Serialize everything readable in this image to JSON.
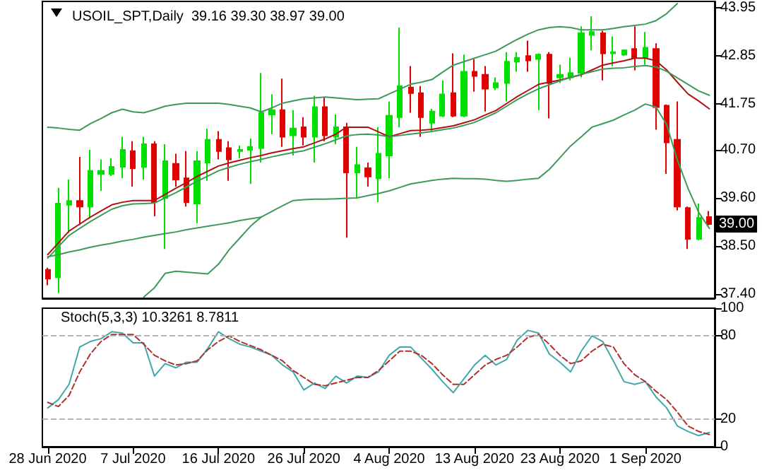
{
  "chart_data": [
    {
      "type": "candlestick",
      "title": "USOIL_SPT,Daily  39.16 39.30 38.97 39.00",
      "categories": [
        null,
        null,
        null,
        null,
        null,
        null,
        null,
        null,
        null,
        null,
        null,
        null,
        null,
        null,
        null,
        null,
        null,
        null,
        null,
        null,
        null,
        null,
        null,
        null,
        null,
        null,
        null,
        null,
        null,
        null,
        null,
        null,
        null,
        null,
        null,
        null,
        null,
        null,
        null,
        null,
        null,
        null,
        null,
        null,
        null,
        null,
        null,
        null,
        null,
        null,
        null,
        null,
        null,
        null,
        null,
        null,
        null,
        null,
        null,
        null,
        null,
        null,
        null
      ],
      "ohlc": [
        [
          37.95,
          38.0,
          37.6,
          37.75
        ],
        [
          37.78,
          39.83,
          37.42,
          39.47
        ],
        [
          39.44,
          40.02,
          38.79,
          39.53
        ],
        [
          39.53,
          40.54,
          38.98,
          39.4
        ],
        [
          39.4,
          40.7,
          39.14,
          40.22
        ],
        [
          40.15,
          40.48,
          39.76,
          40.22
        ],
        [
          40.15,
          40.51,
          40.1,
          40.31
        ],
        [
          40.31,
          41.0,
          40.05,
          40.7
        ],
        [
          40.67,
          40.9,
          39.86,
          40.28
        ],
        [
          40.31,
          41.0,
          40.02,
          40.83
        ],
        [
          40.83,
          40.9,
          39.18,
          39.5
        ],
        [
          39.6,
          40.83,
          38.43,
          40.44
        ],
        [
          40.38,
          40.61,
          39.86,
          40.02
        ],
        [
          40.05,
          40.67,
          39.4,
          39.5
        ],
        [
          39.47,
          40.67,
          39.02,
          40.44
        ],
        [
          40.41,
          41.19,
          39.99,
          40.93
        ],
        [
          40.93,
          41.13,
          40.48,
          40.67
        ],
        [
          40.74,
          40.9,
          39.99,
          40.48
        ],
        [
          40.67,
          40.8,
          40.51,
          40.7
        ],
        [
          40.7,
          40.96,
          39.92,
          40.77
        ],
        [
          40.74,
          42.46,
          40.41,
          41.55
        ],
        [
          41.51,
          41.97,
          41.06,
          41.61
        ],
        [
          41.61,
          42.33,
          40.77,
          41.0
        ],
        [
          41.03,
          41.61,
          40.57,
          41.19
        ],
        [
          41.22,
          41.45,
          40.8,
          41.0
        ],
        [
          41.0,
          41.94,
          40.41,
          41.68
        ],
        [
          41.68,
          41.9,
          40.9,
          41.03
        ],
        [
          41.0,
          41.51,
          40.83,
          41.22
        ],
        [
          41.22,
          41.32,
          38.69,
          40.18
        ],
        [
          40.18,
          40.77,
          39.6,
          40.35
        ],
        [
          40.28,
          40.41,
          39.86,
          40.09
        ],
        [
          40.05,
          41.22,
          39.5,
          40.61
        ],
        [
          40.57,
          41.81,
          40.05,
          41.48
        ],
        [
          41.45,
          43.5,
          41.22,
          42.16
        ],
        [
          42.13,
          42.62,
          41.55,
          42.0
        ],
        [
          42.0,
          42.16,
          41.0,
          41.45
        ],
        [
          41.32,
          41.64,
          41.13,
          41.58
        ],
        [
          41.48,
          42.29,
          41.45,
          41.97
        ],
        [
          42.0,
          42.91,
          41.45,
          41.48
        ],
        [
          41.48,
          42.88,
          41.45,
          42.49
        ],
        [
          42.49,
          42.78,
          42.03,
          42.39
        ],
        [
          42.42,
          42.62,
          41.58,
          42.1
        ],
        [
          42.13,
          42.36,
          42.07,
          42.23
        ],
        [
          42.23,
          42.94,
          41.81,
          42.72
        ],
        [
          42.72,
          42.94,
          42.49,
          42.81
        ],
        [
          42.85,
          43.2,
          42.49,
          42.75
        ],
        [
          42.78,
          42.91,
          41.61,
          42.88
        ],
        [
          42.88,
          42.94,
          41.42,
          42.23
        ],
        [
          42.36,
          42.65,
          42.23,
          42.42
        ],
        [
          42.36,
          42.81,
          42.29,
          42.46
        ],
        [
          42.46,
          43.53,
          42.36,
          43.37
        ],
        [
          43.33,
          43.76,
          42.98,
          43.4
        ],
        [
          43.37,
          43.43,
          42.29,
          42.91
        ],
        [
          42.91,
          43.3,
          42.62,
          42.94
        ],
        [
          42.88,
          43.0,
          42.85,
          42.98
        ],
        [
          43.01,
          43.53,
          42.52,
          42.81
        ],
        [
          42.81,
          43.4,
          42.65,
          43.04
        ],
        [
          43.01,
          43.14,
          41.16,
          41.68
        ],
        [
          41.71,
          41.74,
          40.15,
          40.87
        ],
        [
          40.93,
          41.81,
          39.31,
          39.4
        ],
        [
          39.37,
          39.4,
          38.43,
          38.66
        ],
        [
          38.66,
          39.47,
          38.63,
          39.14
        ],
        [
          39.16,
          39.3,
          38.97,
          39.0
        ]
      ],
      "colors": [
        "#e00000",
        "#00e000",
        "#00e000",
        "#e00000",
        "#00e000",
        "#00e000",
        "#00e000",
        "#00e000",
        "#e00000",
        "#00e000",
        "#e00000",
        "#00e000",
        "#e00000",
        "#e00000",
        "#00e000",
        "#00e000",
        "#e00000",
        "#e00000",
        "#00e000",
        "#00e000",
        "#00e000",
        "#00e000",
        "#e00000",
        "#00e000",
        "#e00000",
        "#00e000",
        "#e00000",
        "#00e000",
        "#e00000",
        "#00e000",
        "#e00000",
        "#00e000",
        "#00e000",
        "#00e000",
        "#e00000",
        "#e00000",
        "#00e000",
        "#00e000",
        "#e00000",
        "#00e000",
        "#e00000",
        "#e00000",
        "#00e000",
        "#00e000",
        "#00e000",
        "#e00000",
        "#00e000",
        "#e00000",
        "#00e000",
        "#00e000",
        "#00e000",
        "#00e000",
        "#e00000",
        "#00e000",
        "#00e000",
        "#e00000",
        "#00e000",
        "#e00000",
        "#e00000",
        "#e00000",
        "#e00000",
        "#00e000",
        "#e00000"
      ],
      "series": [
        {
          "type": "line",
          "color": "#3c9a5a",
          "values": [
            41.22,
            41.2,
            41.17,
            41.15,
            41.3,
            41.42,
            41.55,
            41.63,
            41.57,
            41.55,
            41.62,
            41.7,
            41.74,
            41.77,
            41.77,
            41.77,
            41.77,
            41.74,
            41.7,
            41.66,
            41.57,
            41.66,
            41.77,
            41.82,
            41.87,
            41.89,
            41.91,
            41.89,
            41.87,
            41.85,
            41.86,
            41.87,
            41.98,
            42.09,
            42.2,
            42.25,
            42.31,
            42.48,
            42.64,
            42.72,
            42.8,
            42.88,
            42.96,
            43.1,
            43.23,
            43.35,
            43.45,
            43.5,
            43.52,
            43.5,
            43.45,
            43.45,
            43.45,
            43.48,
            43.52,
            43.55,
            43.58,
            43.66,
            43.82,
            44.05,
            null,
            null,
            null
          ]
        },
        {
          "type": "line",
          "color": "#b01010",
          "values": [
            38.3,
            38.57,
            38.84,
            39.0,
            39.16,
            39.3,
            39.44,
            39.5,
            39.54,
            39.54,
            39.54,
            39.68,
            39.82,
            39.95,
            40.09,
            40.21,
            40.33,
            40.4,
            40.46,
            40.52,
            40.57,
            40.63,
            40.68,
            40.73,
            40.77,
            40.86,
            40.95,
            41.06,
            41.22,
            41.22,
            41.22,
            41.11,
            41.0,
            41.07,
            41.14,
            41.15,
            41.17,
            41.21,
            41.25,
            41.32,
            41.39,
            41.5,
            41.6,
            41.76,
            41.92,
            42.06,
            42.2,
            42.25,
            42.3,
            42.36,
            42.42,
            42.53,
            42.64,
            42.69,
            42.74,
            42.8,
            42.8,
            42.74,
            42.53,
            42.25,
            41.98,
            41.82,
            41.64
          ]
        },
        {
          "type": "line",
          "color": "#3c9a5a",
          "values": [
            38.22,
            38.48,
            38.74,
            38.9,
            39.06,
            39.2,
            39.34,
            39.42,
            39.46,
            39.47,
            39.48,
            39.6,
            39.72,
            39.85,
            39.98,
            40.1,
            40.22,
            40.3,
            40.37,
            40.43,
            40.48,
            40.54,
            40.59,
            40.64,
            40.68,
            40.76,
            40.84,
            40.93,
            41.02,
            41.05,
            41.06,
            41.04,
            41.0,
            41.03,
            41.06,
            41.09,
            41.12,
            41.16,
            41.2,
            41.26,
            41.33,
            41.44,
            41.55,
            41.7,
            41.85,
            41.98,
            42.1,
            42.19,
            42.28,
            42.36,
            42.43,
            42.49,
            42.55,
            42.57,
            42.58,
            42.61,
            42.63,
            42.6,
            42.5,
            42.35,
            42.2,
            42.05,
            41.95
          ]
        },
        {
          "type": "line",
          "color": "#3c9a5a",
          "values": [
            38.25,
            38.3,
            38.36,
            38.41,
            38.47,
            38.52,
            38.56,
            38.61,
            38.65,
            38.7,
            38.74,
            38.78,
            38.82,
            38.87,
            38.91,
            38.95,
            38.99,
            39.03,
            39.08,
            39.12,
            39.16,
            39.29,
            39.42,
            39.54,
            39.56,
            39.57,
            39.57,
            39.58,
            39.59,
            39.6,
            39.65,
            39.7,
            39.76,
            39.84,
            39.92,
            39.96,
            40.0,
            40.03,
            40.05,
            40.04,
            40.04,
            40.03,
            40.0,
            39.98,
            40.0,
            40.03,
            40.05,
            40.25,
            40.52,
            40.79,
            41.0,
            41.22,
            41.3,
            41.38,
            41.5,
            41.61,
            41.75,
            41.68,
            41.28,
            40.47,
            39.82,
            39.27,
            38.9
          ]
        },
        {
          "type": "line",
          "color": "#3c9a5a",
          "values": [
            null,
            null,
            null,
            null,
            null,
            null,
            null,
            null,
            null,
            37.33,
            37.54,
            37.87,
            37.92,
            37.9,
            37.88,
            37.86,
            38.08,
            38.41,
            38.68,
            38.95,
            39.16,
            null,
            null,
            null,
            null,
            null,
            null,
            null,
            null,
            null,
            null,
            null,
            null,
            null,
            null,
            null,
            null,
            null,
            null,
            null,
            null,
            null,
            null,
            null,
            null,
            null,
            null,
            null,
            null,
            null,
            null,
            null,
            null,
            null,
            null,
            null,
            null,
            null,
            null,
            null,
            null,
            null,
            null
          ]
        }
      ],
      "ylim": [
        37.3,
        44.1
      ],
      "yticks": [
        {
          "value": 37.4,
          "label": "37.40"
        },
        {
          "value": 38.5,
          "label": "38.50"
        },
        {
          "value": 39.6,
          "label": "39.60"
        },
        {
          "value": 40.7,
          "label": "40.70"
        },
        41.75,
        42.85,
        43.95
      ],
      "annotations": [
        {
          "text": "39.00",
          "y": 39.0
        }
      ],
      "tick_labels": "y"
    },
    {
      "type": "line",
      "title": "Stoch(5,3,3) 10.3261 8.7811",
      "categories": [
        "28 Jun 2020",
        null,
        null,
        null,
        null,
        null,
        null,
        null,
        "7 Jul 2020",
        null,
        null,
        null,
        null,
        null,
        null,
        null,
        "16 Jul 2020",
        null,
        null,
        null,
        null,
        null,
        null,
        null,
        "26 Jul 2020",
        null,
        null,
        null,
        null,
        null,
        null,
        null,
        "4 Aug 2020",
        null,
        null,
        null,
        null,
        null,
        null,
        null,
        "13 Aug 2020",
        null,
        null,
        null,
        null,
        null,
        null,
        null,
        "23 Aug 2020",
        null,
        null,
        null,
        null,
        null,
        null,
        null,
        "1 Sep 2020",
        null,
        null,
        null,
        null,
        null,
        null
      ],
      "series": [
        {
          "color": "#40a8a8",
          "line_style": "solid",
          "values": [
            28,
            34,
            45,
            72,
            76,
            78,
            83,
            82,
            75,
            75,
            51,
            60,
            57,
            61,
            61,
            71,
            83,
            78,
            74,
            72,
            69,
            66,
            59,
            54,
            41,
            46,
            42,
            51,
            46,
            51,
            50,
            54,
            66,
            72,
            72,
            64,
            56,
            47,
            39,
            49,
            59,
            66,
            59,
            63,
            77,
            84,
            82,
            67,
            61,
            54,
            69,
            80,
            76,
            62,
            47,
            45,
            47,
            36,
            28,
            15,
            11,
            8,
            10.3261
          ]
        },
        {
          "color": "#b03030",
          "line_style": "dashed",
          "values": [
            32,
            29,
            37,
            54,
            67,
            76,
            81,
            81,
            81,
            74,
            66,
            62,
            59,
            60,
            62,
            70,
            76,
            80,
            76,
            73,
            70,
            66,
            62,
            55,
            50,
            45,
            44,
            46,
            48,
            50,
            50,
            55,
            62,
            69,
            69,
            66,
            60,
            52,
            45,
            45,
            52,
            59,
            63,
            66,
            72,
            79,
            81,
            74,
            66,
            60,
            62,
            69,
            74,
            72,
            60,
            52,
            47,
            40,
            34,
            25,
            15,
            11,
            8.7811
          ]
        }
      ],
      "ylim": [
        0,
        100
      ],
      "yticks": [
        0,
        20,
        80,
        100
      ],
      "ref_lines": [
        {
          "axis": "y",
          "value": 80,
          "color": "#b4b4b4",
          "line_style": "dashed"
        },
        {
          "axis": "y",
          "value": 20,
          "color": "#b4b4b4",
          "line_style": "dashed"
        }
      ]
    }
  ]
}
